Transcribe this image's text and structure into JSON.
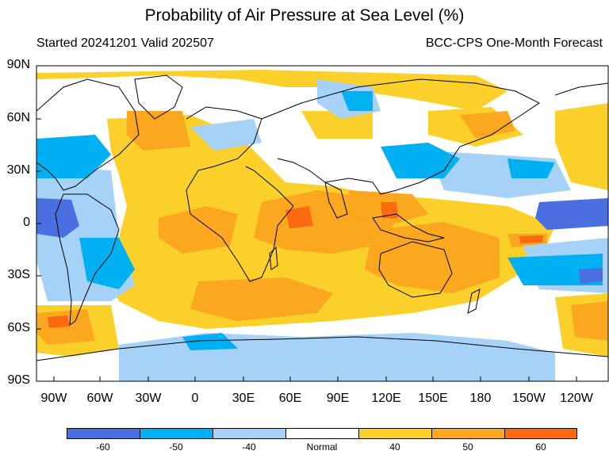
{
  "title": "Probability of Air Pressure at Sea Level (%)",
  "subtitle_left": "Started 20241201  Valid 202507",
  "subtitle_right": "BCC-CPS One-Month Forecast",
  "lat_labels": [
    "90N",
    "60N",
    "30N",
    "0",
    "30S",
    "60S",
    "90S"
  ],
  "lon_labels": [
    "90W",
    "60W",
    "30W",
    "0",
    "30E",
    "60E",
    "90E",
    "120E",
    "150E",
    "180",
    "150W",
    "120W"
  ],
  "colorbar": {
    "colors": [
      "#4a6fe0",
      "#00b0f0",
      "#a6d2f8",
      "#ffffff",
      "#fcd02b",
      "#fba71f",
      "#fb6a10"
    ],
    "tick_labels": [
      "-60",
      "-50",
      "-40",
      "Normal",
      "40",
      "50",
      "60"
    ]
  },
  "legend_colors": {
    "below_60": "#4a6fe0",
    "below_50": "#00b0f0",
    "below_40": "#a6d2f8",
    "normal": "#ffffff",
    "above_40": "#fcd02b",
    "above_50": "#fba71f",
    "above_60": "#fb6a10"
  }
}
